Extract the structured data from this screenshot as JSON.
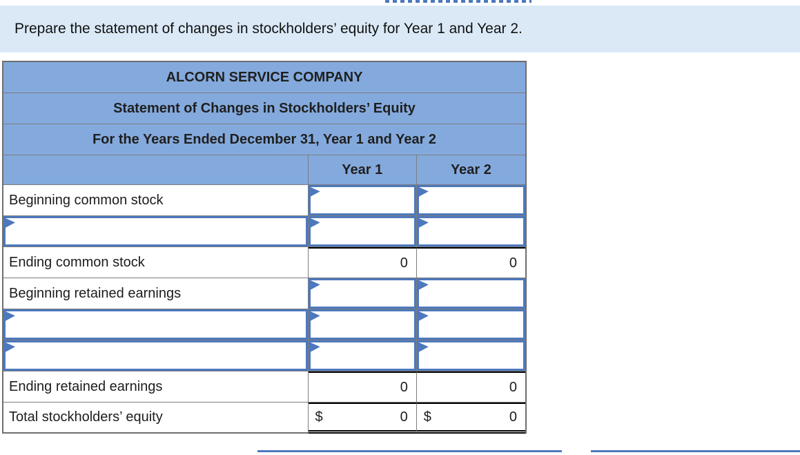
{
  "instruction": "Prepare the statement of changes in stockholders’ equity for Year 1 and Year 2.",
  "table": {
    "title_rows": [
      "ALCORN SERVICE COMPANY",
      "Statement of Changes in Stockholders’ Equity",
      "For the Years Ended December 31, Year 1 and Year 2"
    ],
    "columns": [
      "",
      "Year 1",
      "Year 2"
    ],
    "rows": [
      {
        "label": "Beginning common stock",
        "label_type": "static",
        "year1": {
          "type": "input",
          "value": ""
        },
        "year2": {
          "type": "input",
          "value": ""
        }
      },
      {
        "label": "",
        "label_type": "input",
        "year1": {
          "type": "input",
          "value": ""
        },
        "year2": {
          "type": "input",
          "value": ""
        }
      },
      {
        "label": "Ending common stock",
        "label_type": "static",
        "year1": {
          "type": "value",
          "value": "0",
          "top_rule": true
        },
        "year2": {
          "type": "value",
          "value": "0",
          "top_rule": true
        }
      },
      {
        "label": "Beginning retained earnings",
        "label_type": "static",
        "year1": {
          "type": "input",
          "value": ""
        },
        "year2": {
          "type": "input",
          "value": ""
        }
      },
      {
        "label": "",
        "label_type": "input",
        "year1": {
          "type": "input",
          "value": ""
        },
        "year2": {
          "type": "input",
          "value": ""
        }
      },
      {
        "label": "",
        "label_type": "input",
        "year1": {
          "type": "input",
          "value": ""
        },
        "year2": {
          "type": "input",
          "value": ""
        }
      },
      {
        "label": "Ending retained earnings",
        "label_type": "static",
        "year1": {
          "type": "value",
          "value": "0",
          "top_rule": true
        },
        "year2": {
          "type": "value",
          "value": "0",
          "top_rule": true
        }
      },
      {
        "label": "Total stockholders’ equity",
        "label_type": "static",
        "year1": {
          "type": "value",
          "value": "0",
          "currency": "$",
          "top_rule": true,
          "double_bottom_rule": true
        },
        "year2": {
          "type": "value",
          "value": "0",
          "currency": "$",
          "top_rule": true,
          "double_bottom_rule": true
        }
      }
    ]
  },
  "colors": {
    "banner_bg": "#dbe9f7",
    "header_bg": "#84aadd",
    "input_border": "#4d78bd",
    "grid_border": "#7c7c7c",
    "rule_color": "#000000"
  }
}
